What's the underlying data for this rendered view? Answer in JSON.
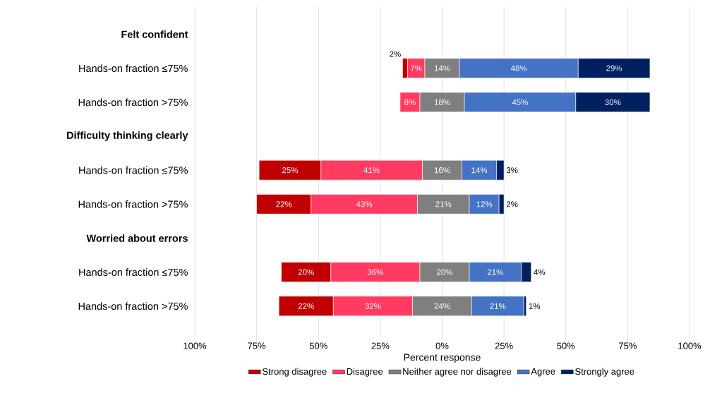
{
  "chart_data": {
    "type": "bar",
    "orientation": "horizontal",
    "xlabel": "Percent response",
    "categories": [
      "Felt confident",
      "Hands-on fraction ≤75%",
      "Hands-on fraction >75%",
      "Difficulty thinking clearly",
      "Hands-on fraction ≤75%",
      "Hands-on fraction >75%",
      "Worried about errors",
      "Hands-on fraction ≤75%",
      "Hands-on fraction >75%"
    ],
    "series": [
      {
        "name": "Strong disagree",
        "color": "#c00000",
        "values": [
          null,
          2,
          null,
          null,
          25,
          22,
          null,
          20,
          22
        ],
        "base": [
          null,
          -16,
          null,
          null,
          -74,
          -75,
          null,
          -65,
          -66
        ],
        "value_labels": [
          null,
          "2%",
          null,
          null,
          "25%",
          "22%",
          null,
          "20%",
          "22%"
        ]
      },
      {
        "name": "Disagree",
        "color": "#ff3b62",
        "values": [
          null,
          7,
          8,
          null,
          41,
          43,
          null,
          36,
          32
        ],
        "base": [
          null,
          -14,
          -17,
          null,
          -49,
          -53,
          null,
          -45,
          -44
        ],
        "value_labels": [
          null,
          "7%",
          "8%",
          null,
          "41%",
          "43%",
          null,
          "36%",
          "32%"
        ]
      },
      {
        "name": "Neither agree nor disagree",
        "color": "#7f7f7f",
        "values": [
          null,
          14,
          18,
          null,
          16,
          21,
          null,
          20,
          24
        ],
        "base": [
          null,
          -7,
          -9,
          null,
          -8,
          -10,
          null,
          -9,
          -12
        ],
        "value_labels": [
          null,
          "14%",
          "18%",
          null,
          "16%",
          "21%",
          null,
          "20%",
          "24%"
        ]
      },
      {
        "name": "Agree",
        "color": "#4472c4",
        "values": [
          null,
          48,
          45,
          null,
          14,
          12,
          null,
          21,
          21
        ],
        "base": [
          null,
          7,
          9,
          null,
          8,
          11,
          null,
          11,
          12
        ],
        "value_labels": [
          null,
          "48%",
          "45%",
          null,
          "14%",
          "12%",
          null,
          "21%",
          "21%"
        ]
      },
      {
        "name": "Strongly agree",
        "color": "#002060",
        "values": [
          null,
          29,
          30,
          null,
          3,
          2,
          null,
          4,
          1
        ],
        "base": [
          null,
          55,
          54,
          null,
          22,
          23,
          null,
          32,
          33
        ],
        "value_labels": [
          null,
          "29%",
          "30%",
          null,
          "3%",
          "2%",
          null,
          "4%",
          "1%"
        ]
      }
    ],
    "xlim": [
      -100,
      100
    ],
    "xticks": [
      {
        "value": -100,
        "label": "100%"
      },
      {
        "value": -75,
        "label": "75%"
      },
      {
        "value": -50,
        "label": "50%"
      },
      {
        "value": -25,
        "label": "25%"
      },
      {
        "value": 0,
        "label": "0%"
      },
      {
        "value": 25,
        "label": "25%"
      },
      {
        "value": 50,
        "label": "50%"
      },
      {
        "value": 75,
        "label": "75%"
      },
      {
        "value": 100,
        "label": "100%"
      }
    ],
    "grid": "x",
    "legend": "bottom"
  }
}
